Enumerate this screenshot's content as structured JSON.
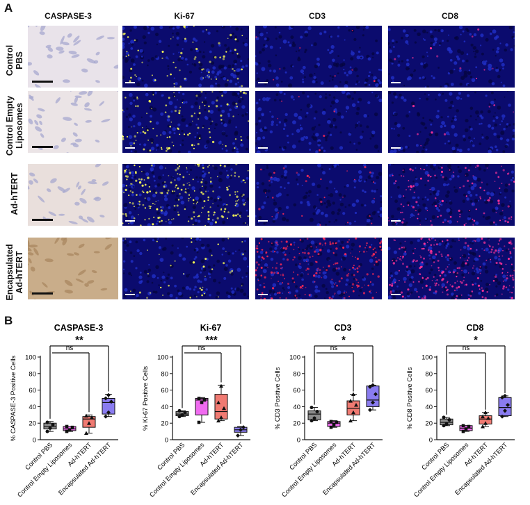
{
  "panelA": {
    "letter": "A",
    "columns": [
      "CASPASE-3",
      "Ki-67",
      "CD3",
      "CD8"
    ],
    "rows": [
      {
        "label_lines": [
          "Control",
          "PBS"
        ]
      },
      {
        "label_lines": [
          "Control Empty",
          "Liposomes"
        ]
      },
      {
        "label_lines": [
          "Ad-hTERT"
        ]
      },
      {
        "label_lines": [
          "Encapsulated",
          "Ad-hTERT"
        ]
      }
    ],
    "ihc_colors": [
      "#e9e3ea",
      "#ebe4e6",
      "#e9dfdc",
      "#c9ad8a"
    ],
    "fl_colors": {
      "ki67_dots": [
        "#ffff55",
        "#ffff55",
        "#ffff55",
        "#ffff55"
      ],
      "cd3_dots": "#ff2a55",
      "cd8_dots": "#ff3399"
    }
  },
  "panelB": {
    "letter": "B",
    "categories": [
      "Control PBS",
      "Control Empty Liposomes",
      "Ad-hTERT",
      "Encapsulated Ad-hTERT"
    ],
    "box_colors": [
      "#8c8c8c",
      "#f06bf0",
      "#f07a72",
      "#8a7cf0"
    ],
    "ns_label": "ns"
  },
  "chart_data": [
    {
      "type": "box",
      "title": "CASPASE-3",
      "ylabel": "% CASPASE-3 Positive Cells",
      "ylim": [
        0,
        100
      ],
      "yticks": [
        0,
        20,
        40,
        60,
        80,
        100
      ],
      "categories": [
        "Control PBS",
        "Control Empty Liposomes",
        "Ad-hTERT",
        "Encapsulated Ad-hTERT"
      ],
      "boxes": [
        {
          "min": 10,
          "q1": 13,
          "median": 16,
          "q3": 20,
          "max": 22,
          "points": [
            10,
            14,
            18,
            21
          ]
        },
        {
          "min": 10,
          "q1": 11,
          "median": 13,
          "q3": 16,
          "max": 16,
          "points": [
            10,
            12,
            15,
            16
          ]
        },
        {
          "min": 8,
          "q1": 15,
          "median": 25,
          "q3": 28,
          "max": 30,
          "points": [
            8,
            20,
            27,
            29
          ]
        },
        {
          "min": 28,
          "q1": 31,
          "median": 45,
          "q3": 50,
          "max": 55,
          "points": [
            28,
            33,
            46,
            50,
            54
          ]
        }
      ],
      "significance": {
        "ns": "ns",
        "star": "**"
      }
    },
    {
      "type": "box",
      "title": "Ki-67",
      "ylabel": "% Ki-67 Positive Cells",
      "ylim": [
        0,
        100
      ],
      "yticks": [
        0,
        20,
        40,
        60,
        80,
        100
      ],
      "categories": [
        "Control PBS",
        "Control Empty Liposomes",
        "Ad-hTERT",
        "Encapsulated Ad-hTERT"
      ],
      "boxes": [
        {
          "min": 28,
          "q1": 29,
          "median": 31,
          "q3": 34,
          "max": 35,
          "points": [
            28,
            30,
            33,
            35
          ]
        },
        {
          "min": 21,
          "q1": 30,
          "median": 48,
          "q3": 50,
          "max": 51,
          "points": [
            21,
            45,
            48,
            50
          ]
        },
        {
          "min": 23,
          "q1": 25,
          "median": 34,
          "q3": 55,
          "max": 66,
          "points": [
            23,
            27,
            38,
            45,
            65
          ]
        },
        {
          "min": 5,
          "q1": 9,
          "median": 12,
          "q3": 15,
          "max": 16,
          "points": [
            5,
            12,
            15
          ]
        }
      ],
      "significance": {
        "ns": "ns",
        "star": "***"
      }
    },
    {
      "type": "box",
      "title": "CD3",
      "ylabel": "% CD3 Positive Cells",
      "ylim": [
        0,
        100
      ],
      "yticks": [
        0,
        20,
        40,
        60,
        80,
        100
      ],
      "categories": [
        "Control PBS",
        "Control Empty Liposomes",
        "Ad-hTERT",
        "Encapsulated Ad-hTERT"
      ],
      "boxes": [
        {
          "min": 23,
          "q1": 24,
          "median": 31,
          "q3": 35,
          "max": 39,
          "points": [
            23,
            26,
            34,
            39
          ]
        },
        {
          "min": 15,
          "q1": 16,
          "median": 20,
          "q3": 22,
          "max": 23,
          "points": [
            15,
            18,
            21,
            22
          ]
        },
        {
          "min": 23,
          "q1": 30,
          "median": 38,
          "q3": 47,
          "max": 55,
          "points": [
            23,
            33,
            42,
            47,
            55
          ]
        },
        {
          "min": 36,
          "q1": 40,
          "median": 48,
          "q3": 65,
          "max": 66,
          "points": [
            36,
            45,
            55,
            64,
            66
          ]
        }
      ],
      "significance": {
        "ns": "ns",
        "star": "*"
      }
    },
    {
      "type": "box",
      "title": "CD8",
      "ylabel": "% CD8 Positive Cells",
      "ylim": [
        0,
        100
      ],
      "yticks": [
        0,
        20,
        40,
        60,
        80,
        100
      ],
      "categories": [
        "Control PBS",
        "Control Empty Liposomes",
        "Ad-hTERT",
        "Encapsulated Ad-hTERT"
      ],
      "boxes": [
        {
          "min": 17,
          "q1": 18,
          "median": 21,
          "q3": 25,
          "max": 27,
          "points": [
            17,
            19,
            24,
            27
          ]
        },
        {
          "min": 10,
          "q1": 11,
          "median": 14,
          "q3": 17,
          "max": 17,
          "points": [
            10,
            13,
            16,
            17
          ]
        },
        {
          "min": 16,
          "q1": 19,
          "median": 25,
          "q3": 29,
          "max": 33,
          "points": [
            16,
            20,
            26,
            28,
            33
          ]
        },
        {
          "min": 28,
          "q1": 29,
          "median": 39,
          "q3": 51,
          "max": 53,
          "points": [
            28,
            35,
            42,
            51,
            53
          ]
        }
      ],
      "significance": {
        "ns": "ns",
        "star": "*"
      }
    }
  ]
}
